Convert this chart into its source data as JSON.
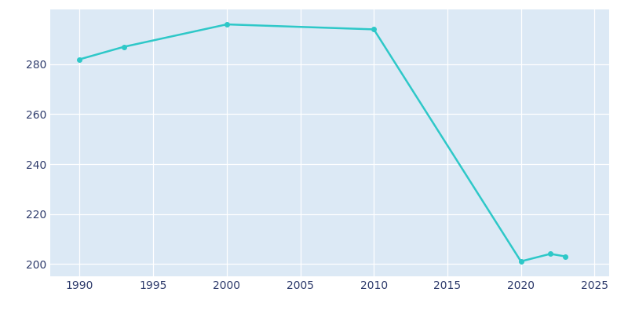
{
  "years": [
    1990,
    1993,
    2000,
    2010,
    2020,
    2022,
    2023
  ],
  "population": [
    282,
    287,
    296,
    294,
    201,
    204,
    203
  ],
  "line_color": "#2ec8c8",
  "marker_color": "#2ec8c8",
  "fig_bg_color": "#ffffff",
  "plot_bg_color": "#dce9f5",
  "grid_color": "#ffffff",
  "tick_label_color": "#2d3a6b",
  "xlim": [
    1988,
    2026
  ],
  "ylim": [
    195,
    302
  ],
  "xticks": [
    1990,
    1995,
    2000,
    2005,
    2010,
    2015,
    2020,
    2025
  ],
  "yticks": [
    200,
    220,
    240,
    260,
    280
  ],
  "line_width": 1.8,
  "marker_size": 4
}
